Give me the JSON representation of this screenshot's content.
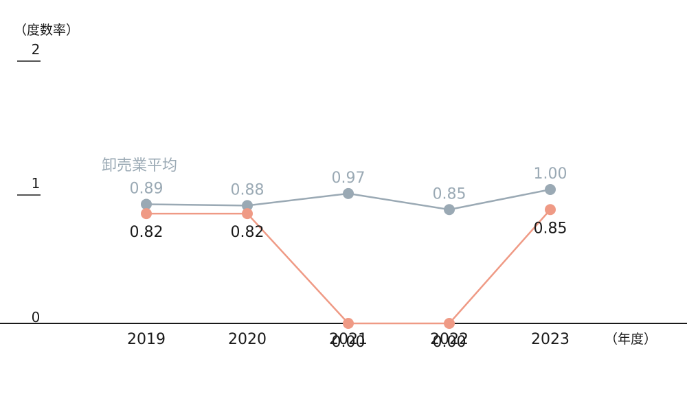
{
  "chart_data": {
    "type": "line",
    "y_unit": "（度数率）",
    "x_unit": "（年度）",
    "categories": [
      "2019",
      "2020",
      "2021",
      "2022",
      "2023"
    ],
    "ylim": [
      0,
      2
    ],
    "yticks": [
      "0",
      "1",
      "2"
    ],
    "grid": false,
    "series": [
      {
        "name": "卸売業平均",
        "values": [
          0.89,
          0.88,
          0.97,
          0.85,
          1.0
        ],
        "labels": [
          "0.89",
          "0.88",
          "0.97",
          "0.85",
          "1.00"
        ],
        "color": "#9aa9b4",
        "label_position": "above"
      },
      {
        "name": "",
        "values": [
          0.82,
          0.82,
          0.0,
          0.0,
          0.85
        ],
        "labels": [
          "0.82",
          "0.82",
          "0.00",
          "0.00",
          "0.85"
        ],
        "color": "#ef9a85",
        "label_position": "below"
      }
    ]
  }
}
